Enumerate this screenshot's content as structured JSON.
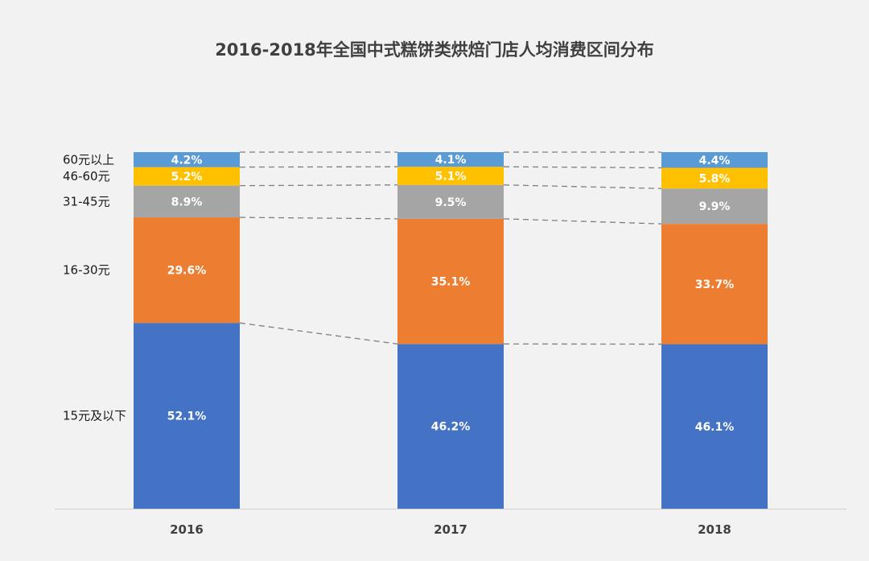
{
  "chart_data": {
    "type": "bar",
    "stacked": true,
    "normalized_percent": true,
    "title": "2016-2018年全国中式糕饼类烘焙门店人均消费区间分布",
    "categories": [
      "2016",
      "2017",
      "2018"
    ],
    "series": [
      {
        "name": "15元及以下",
        "values": [
          52.1,
          46.2,
          46.1
        ],
        "labels": [
          "52.1%",
          "46.2%",
          "46.1%"
        ],
        "color": "#4472c4"
      },
      {
        "name": "16-30元",
        "values": [
          29.6,
          35.1,
          33.7
        ],
        "labels": [
          "29.6%",
          "35.1%",
          "33.7%"
        ],
        "color": "#ed7d31"
      },
      {
        "name": "31-45元",
        "values": [
          8.9,
          9.5,
          9.9
        ],
        "labels": [
          "8.9%",
          "9.5%",
          "9.9%"
        ],
        "color": "#a5a5a5"
      },
      {
        "name": "46-60元",
        "values": [
          5.2,
          5.1,
          5.8
        ],
        "labels": [
          "5.2%",
          "5.1%",
          "5.8%"
        ],
        "color": "#ffc000"
      },
      {
        "name": "60元以上",
        "values": [
          4.2,
          4.1,
          4.4
        ],
        "labels": [
          "4.2%",
          "4.1%",
          "4.4%"
        ],
        "color": "#5b9bd5"
      }
    ],
    "legend_placement": "left",
    "grid": false,
    "series_connector_lines": true
  }
}
